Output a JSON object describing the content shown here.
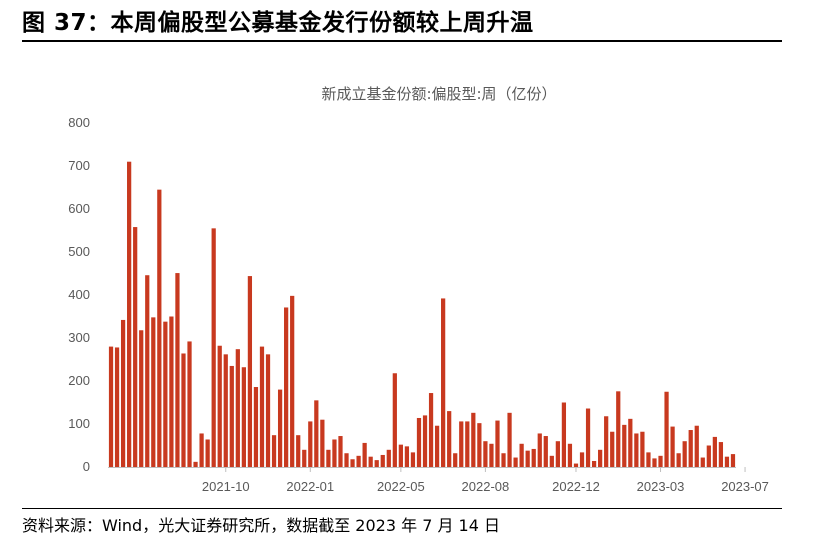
{
  "figure": {
    "title": "图 37：本周偏股型公募基金发行份额较上周升温",
    "source": "资料来源：Wind，光大证券研究所，数据截至 2023 年 7 月 14 日"
  },
  "colors": {
    "bar": "#c8391f",
    "axis": "#bfbfbf",
    "text": "#595959"
  },
  "chart_data": {
    "type": "bar",
    "title": "新成立基金份额:偏股型:周（亿份）",
    "ylim": [
      0,
      800
    ],
    "yticks": [
      0,
      100,
      200,
      300,
      400,
      500,
      600,
      700,
      800
    ],
    "xticks": [
      {
        "label": "2021-10",
        "index": 19
      },
      {
        "label": "2022-01",
        "index": 33
      },
      {
        "label": "2022-05",
        "index": 48
      },
      {
        "label": "2022-08",
        "index": 62
      },
      {
        "label": "2022-12",
        "index": 77
      },
      {
        "label": "2023-03",
        "index": 91
      },
      {
        "label": "2023-07",
        "index": 105
      }
    ],
    "grid": false,
    "legend": "none",
    "values": [
      280,
      278,
      342,
      710,
      558,
      318,
      446,
      348,
      645,
      338,
      350,
      451,
      264,
      292,
      12,
      78,
      64,
      555,
      282,
      262,
      235,
      274,
      232,
      444,
      186,
      280,
      262,
      74,
      180,
      371,
      398,
      74,
      40,
      106,
      155,
      110,
      40,
      64,
      72,
      32,
      18,
      26,
      56,
      24,
      16,
      28,
      40,
      218,
      52,
      48,
      34,
      114,
      120,
      172,
      96,
      392,
      130,
      32,
      106,
      106,
      126,
      102,
      60,
      54,
      108,
      32,
      126,
      22,
      54,
      38,
      42,
      78,
      72,
      26,
      60,
      150,
      54,
      8,
      34,
      136,
      14,
      40,
      118,
      82,
      176,
      98,
      112,
      78,
      82,
      34,
      20,
      26,
      175,
      94,
      32,
      60,
      86,
      96,
      22,
      50,
      70,
      58,
      24,
      30
    ]
  }
}
